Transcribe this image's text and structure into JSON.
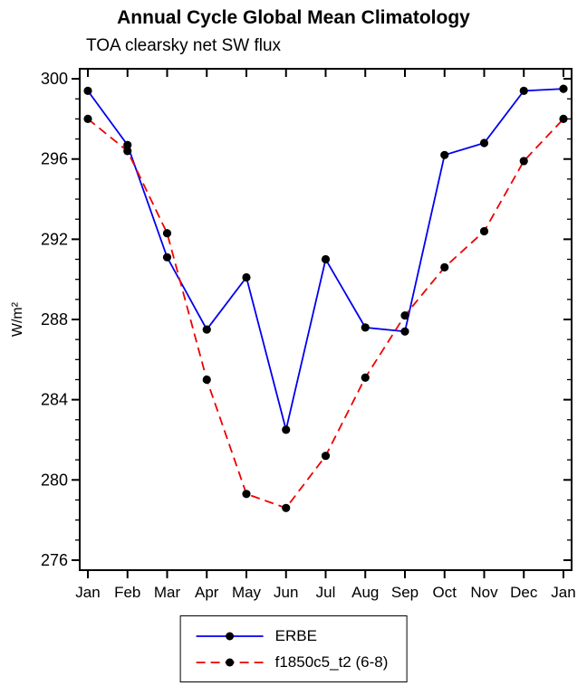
{
  "title": "Annual Cycle Global Mean Climatology",
  "subtitle": "TOA clearsky net SW flux",
  "chart_data": {
    "type": "line",
    "categories": [
      "Jan",
      "Feb",
      "Mar",
      "Apr",
      "May",
      "Jun",
      "Jul",
      "Aug",
      "Sep",
      "Oct",
      "Nov",
      "Dec",
      "Jan"
    ],
    "series": [
      {
        "name": "ERBE",
        "color": "#0000ee",
        "dash": "solid",
        "marker": "dot",
        "values": [
          299.4,
          296.7,
          291.1,
          287.5,
          290.1,
          282.5,
          291.0,
          287.6,
          287.4,
          296.2,
          296.8,
          299.4,
          299.5
        ]
      },
      {
        "name": "f1850c5_t2 (6-8)",
        "color": "#ee0000",
        "dash": "dashed",
        "marker": "dot",
        "values": [
          298.0,
          296.4,
          292.3,
          285.0,
          279.3,
          278.6,
          281.2,
          285.1,
          288.2,
          290.6,
          292.4,
          295.9,
          298.0
        ]
      }
    ],
    "xlabel": "",
    "ylabel": "W/m²",
    "ylim": [
      275.5,
      300.5
    ],
    "ytick_start": 276,
    "ytick_end": 300,
    "ytick_step": 4,
    "yminor_step": 1,
    "marker_color": "#000000",
    "grid": "off",
    "legend_position": "bottom-center"
  }
}
